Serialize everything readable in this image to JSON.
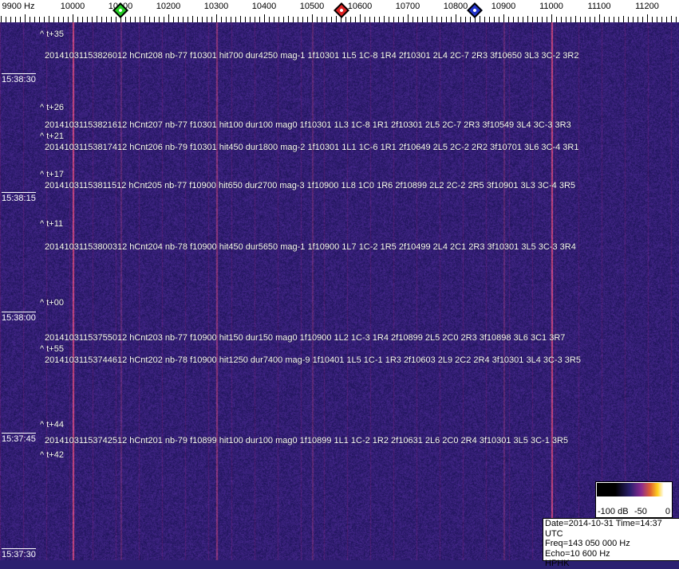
{
  "frequency_axis": {
    "unit": "Hz",
    "labels": [
      "9900 Hz",
      "10000",
      "10100",
      "10200",
      "10300",
      "10400",
      "10500",
      "10600",
      "10700",
      "10800",
      "10900",
      "11000",
      "11100",
      "11200"
    ],
    "values": [
      9900,
      10000,
      10100,
      10200,
      10300,
      10400,
      10500,
      10600,
      10700,
      10800,
      10900,
      11000,
      11100,
      11200
    ]
  },
  "markers": [
    {
      "name": "green-marker",
      "freq": 10100,
      "color": "#22cc22"
    },
    {
      "name": "red-marker",
      "freq": 10562,
      "color": "#dd2222"
    },
    {
      "name": "blue-marker",
      "freq": 10840,
      "color": "#2233cc"
    }
  ],
  "time_labels": [
    "15:38:30",
    "15:38:15",
    "15:38:00",
    "15:37:45",
    "15:37:30"
  ],
  "offset_markers": [
    "^ t+35",
    "^ t+26",
    "^ t+21",
    "^ t+17",
    "^ t+11",
    "^ t+00",
    "^ t+55",
    "^ t+44",
    "^ t+42"
  ],
  "events": [
    "20141031153826012 hCnt208 nb-77 f10301 hit700 dur4250 mag-1 1f10301 1L5 1C-8 1R4 2f10301 2L4 2C-7 2R3 3f10650 3L3 3C-2 3R2",
    "20141031153821612 hCnt207 nb-77 f10301 hit100 dur100 mag0 1f10301 1L3 1C-8 1R1 2f10301 2L5 2C-7 2R3 3f10549 3L4 3C-3 3R3",
    "20141031153817412 hCnt206 nb-79 f10301 hit450 dur1800 mag-2 1f10301 1L1 1C-6 1R1 2f10649 2L5 2C-2 2R2 3f10701 3L6 3C-4 3R1",
    "20141031153811512 hCnt205 nb-77 f10900 hit650 dur2700 mag-3 1f10900 1L8 1C0 1R6 2f10899 2L2 2C-2 2R5 3f10901 3L3 3C-4 3R5",
    "20141031153800312 hCnt204 nb-78 f10900 hit450 dur5650 mag-1 1f10900 1L7 1C-2 1R5 2f10499 2L4 2C1 2R3 3f10301 3L5 3C-3 3R4",
    "20141031153755012 hCnt203 nb-77 f10900 hit150 dur150 mag0 1f10900 1L2 1C-3 1R4 2f10899 2L5 2C0 2R3 3f10898 3L6 3C1 3R7",
    "20141031153744612 hCnt202 nb-78 f10900 hit1250 dur7400 mag-9 1f10401 1L5 1C-1 1R3 2f10603 2L9 2C2 2R4 3f10301 3L4 3C-3 3R5",
    "20141031153742512 hCnt201 nb-79 f10899 hit100 dur100 mag0 1f10899 1L1 1C-2 1R2 2f10631 2L6 2C0 2R4 3f10301 3L5 3C-1 3R5"
  ],
  "colorbar": {
    "labels": [
      "-100 dB",
      "-50",
      "0"
    ],
    "range_db": [
      -100,
      0
    ]
  },
  "info": {
    "date_time": "Date=2014-10-31 Time=14:37 UTC",
    "freq": "Freq=143 050 000 Hz",
    "echo": "Echo=10 600 Hz",
    "station": "HPHK"
  }
}
